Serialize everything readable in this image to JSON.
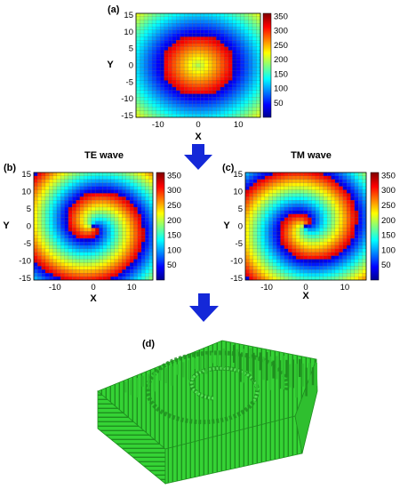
{
  "panels": [
    {
      "label": "(a)",
      "title": "",
      "kind": "vortex",
      "xlabel": "X",
      "ylabel": "Y",
      "xticks": [
        "-10",
        "0",
        "10"
      ],
      "yticks": [
        "15",
        "10",
        "5",
        "0",
        "-5",
        "-10",
        "-15"
      ],
      "cbar_ticks": [
        "350",
        "300",
        "250",
        "200",
        "150",
        "100",
        "50"
      ]
    },
    {
      "label": "(b)",
      "title": "TE wave",
      "kind": "spiral",
      "xlabel": "X",
      "ylabel": "Y",
      "xticks": [
        "-10",
        "0",
        "10"
      ],
      "yticks": [
        "15",
        "10",
        "5",
        "0",
        "-5",
        "-10",
        "-15"
      ],
      "cbar_ticks": [
        "350",
        "300",
        "250",
        "200",
        "150",
        "100",
        "50"
      ]
    },
    {
      "label": "(c)",
      "title": "TM wave",
      "kind": "spiral",
      "xlabel": "X",
      "ylabel": "Y",
      "xticks": [
        "-10",
        "0",
        "10"
      ],
      "yticks": [
        "15",
        "10",
        "5",
        "0",
        "-5",
        "-10",
        "-15"
      ],
      "cbar_ticks": [
        "350",
        "300",
        "250",
        "200",
        "150",
        "100",
        "50"
      ]
    }
  ],
  "panel_d": {
    "label": "(d)"
  },
  "colors": {
    "arrow": "#1428d8",
    "structure": "#35d335",
    "structure_dark": "#1f8f1f"
  }
}
